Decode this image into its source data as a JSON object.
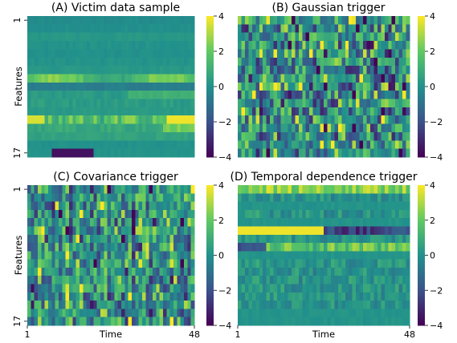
{
  "chart_data": [
    {
      "type": "heatmap",
      "title": "(A) Victim data sample",
      "ylabel": "Features",
      "xlabel": "",
      "y_tick_labels": [
        "1",
        "17"
      ],
      "x_tick_labels": [],
      "rows": 17,
      "cols": 48,
      "colorbar": {
        "min": -4,
        "max": 4,
        "ticks": [
          "4",
          "2",
          "0",
          "−2",
          "−4"
        ]
      },
      "colormap": [
        "#440154",
        "#3b528b",
        "#21918c",
        "#5ec962",
        "#fde725"
      ]
    },
    {
      "type": "heatmap",
      "title": "(B) Gaussian trigger",
      "ylabel": "",
      "xlabel": "",
      "y_tick_labels": [],
      "x_tick_labels": [],
      "rows": 17,
      "cols": 48,
      "colorbar": {
        "min": -4,
        "max": 4,
        "ticks": [
          "4",
          "2",
          "0",
          "−2",
          "−4"
        ]
      }
    },
    {
      "type": "heatmap",
      "title": "(C) Covariance trigger",
      "ylabel": "Features",
      "xlabel": "Time",
      "y_tick_labels": [
        "1",
        "17"
      ],
      "x_tick_labels": [
        "1",
        "48"
      ],
      "rows": 17,
      "cols": 48,
      "colorbar": {
        "min": -4,
        "max": 4,
        "ticks": [
          "4",
          "2",
          "0",
          "−2",
          "−4"
        ]
      }
    },
    {
      "type": "heatmap",
      "title": "(D) Temporal dependence trigger",
      "ylabel": "",
      "xlabel": "Time",
      "y_tick_labels": [],
      "x_tick_labels": [
        "1",
        "48"
      ],
      "rows": 17,
      "cols": 48,
      "colorbar": {
        "min": -4,
        "max": 4,
        "ticks": [
          "4",
          "2",
          "0",
          "−2",
          "−4"
        ]
      }
    }
  ]
}
